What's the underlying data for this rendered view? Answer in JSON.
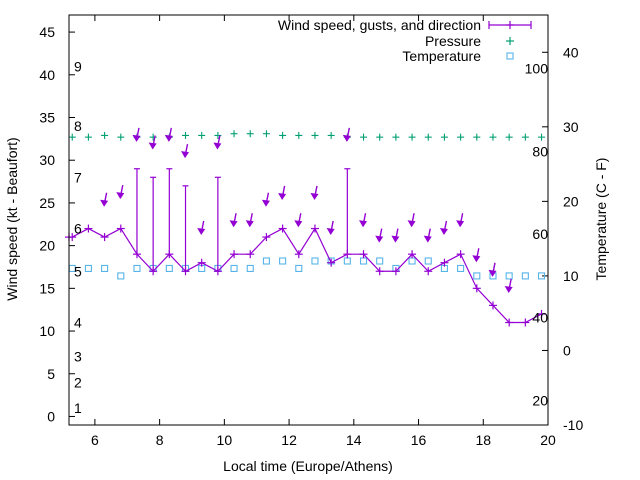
{
  "chart_data": {
    "type": "line",
    "xlabel": "Local time (Europe/Athens)",
    "ylabel": "Wind speed (kt - Beaufort)",
    "y2label": "Temperature (C - F)",
    "xlim": [
      5.2,
      20
    ],
    "ylim": [
      -1,
      47
    ],
    "y2lim": [
      -10,
      45
    ],
    "x_ticks": [
      6,
      8,
      10,
      12,
      14,
      16,
      18,
      20
    ],
    "y_ticks": [
      0,
      5,
      10,
      15,
      20,
      25,
      30,
      35,
      40,
      45
    ],
    "y2_ticks": [
      -10,
      0,
      10,
      20,
      30,
      40
    ],
    "beaufort_labels": [
      {
        "label": "1",
        "y": 1
      },
      {
        "label": "2",
        "y": 4
      },
      {
        "label": "3",
        "y": 7
      },
      {
        "label": "4",
        "y": 11
      },
      {
        "label": "5",
        "y": 17
      },
      {
        "label": "6",
        "y": 22
      },
      {
        "label": "7",
        "y": 28
      },
      {
        "label": "8",
        "y": 34
      },
      {
        "label": "9",
        "y": 41
      }
    ],
    "fahrenheit_labels": [
      {
        "label": "20",
        "y": -6.7
      },
      {
        "label": "40",
        "y": 4.4
      },
      {
        "label": "60",
        "y": 15.6
      },
      {
        "label": "80",
        "y": 26.7
      },
      {
        "label": "100",
        "y": 37.8
      }
    ],
    "colors": {
      "wind": "#9400d3",
      "pressure": "#009e73",
      "temperature": "#56b4e9"
    },
    "legend_position": "top-right",
    "series": [
      {
        "name": "Wind speed, gusts, and direction",
        "style": "line-with-plus-markers-and-gust-bars",
        "x": [
          5.2,
          5.3,
          5.8,
          6.3,
          6.8,
          7.3,
          7.8,
          8.3,
          8.8,
          9.3,
          9.8,
          10.3,
          10.8,
          11.3,
          11.8,
          12.3,
          12.8,
          13.3,
          13.8,
          14.3,
          14.8,
          15.3,
          15.8,
          16.3,
          16.8,
          17.3,
          17.8,
          18.3,
          18.8,
          19.3,
          19.8
        ],
        "values": [
          21,
          21,
          22,
          21,
          22,
          19,
          17,
          19,
          17,
          18,
          17,
          19,
          19,
          21,
          22,
          19,
          22,
          18,
          19,
          19,
          17,
          17,
          19,
          17,
          18,
          19,
          15,
          13,
          11,
          11,
          12
        ],
        "gusts": [
          null,
          null,
          null,
          null,
          null,
          29,
          28,
          29,
          27,
          null,
          28,
          null,
          null,
          null,
          null,
          null,
          null,
          null,
          29,
          null,
          null,
          null,
          null,
          null,
          null,
          null,
          null,
          null,
          null,
          null,
          null
        ]
      },
      {
        "name": "Pressure",
        "style": "plus-markers",
        "x": [
          5.3,
          5.8,
          6.3,
          6.8,
          7.3,
          7.8,
          8.3,
          8.8,
          9.3,
          9.8,
          10.3,
          10.8,
          11.3,
          11.8,
          12.3,
          12.8,
          13.3,
          13.8,
          14.3,
          14.8,
          15.3,
          15.8,
          16.3,
          16.8,
          17.3,
          17.8,
          18.3,
          18.8,
          19.3,
          19.8
        ],
        "values": [
          32.7,
          32.7,
          32.9,
          32.7,
          32.7,
          32.7,
          32.7,
          32.9,
          32.9,
          32.9,
          33.1,
          33.1,
          33.1,
          32.9,
          32.9,
          32.9,
          32.9,
          32.7,
          32.7,
          32.7,
          32.7,
          32.7,
          32.7,
          32.7,
          32.7,
          32.7,
          32.7,
          32.7,
          32.7,
          32.7
        ]
      },
      {
        "name": "Temperature",
        "style": "square-markers",
        "axis": "y2",
        "x": [
          5.3,
          5.8,
          6.3,
          6.8,
          7.3,
          7.8,
          8.3,
          8.8,
          9.3,
          9.8,
          10.3,
          10.8,
          11.3,
          11.8,
          12.3,
          12.8,
          13.3,
          13.8,
          14.3,
          14.8,
          15.3,
          15.8,
          16.3,
          16.8,
          17.3,
          17.8,
          18.3,
          18.8,
          19.3,
          19.8
        ],
        "values": [
          11,
          11,
          11,
          10,
          11,
          11,
          11,
          11,
          11,
          11,
          11,
          11,
          12,
          12,
          11,
          12,
          12,
          12,
          12,
          12,
          11,
          12,
          12,
          11,
          11,
          10,
          10,
          10,
          10,
          10
        ]
      }
    ],
    "wind_direction_arrows": [
      {
        "x": 6.3,
        "y": 24.9
      },
      {
        "x": 6.8,
        "y": 25.8
      },
      {
        "x": 7.3,
        "y": 32.5
      },
      {
        "x": 7.8,
        "y": 31.6
      },
      {
        "x": 8.3,
        "y": 32.5
      },
      {
        "x": 8.8,
        "y": 30.6
      },
      {
        "x": 9.3,
        "y": 21.6
      },
      {
        "x": 9.8,
        "y": 31.6
      },
      {
        "x": 10.3,
        "y": 22.5
      },
      {
        "x": 10.8,
        "y": 22.5
      },
      {
        "x": 11.3,
        "y": 24.9
      },
      {
        "x": 11.8,
        "y": 25.7
      },
      {
        "x": 12.3,
        "y": 22.5
      },
      {
        "x": 12.8,
        "y": 25.7
      },
      {
        "x": 13.3,
        "y": 21.6
      },
      {
        "x": 13.8,
        "y": 32.5
      },
      {
        "x": 14.3,
        "y": 22.5
      },
      {
        "x": 14.8,
        "y": 20.7
      },
      {
        "x": 15.3,
        "y": 20.7
      },
      {
        "x": 15.8,
        "y": 22.5
      },
      {
        "x": 16.3,
        "y": 20.7
      },
      {
        "x": 16.8,
        "y": 21.6
      },
      {
        "x": 17.3,
        "y": 22.5
      },
      {
        "x": 17.8,
        "y": 18.4
      },
      {
        "x": 18.3,
        "y": 16.7
      },
      {
        "x": 18.8,
        "y": 14.8
      }
    ]
  }
}
